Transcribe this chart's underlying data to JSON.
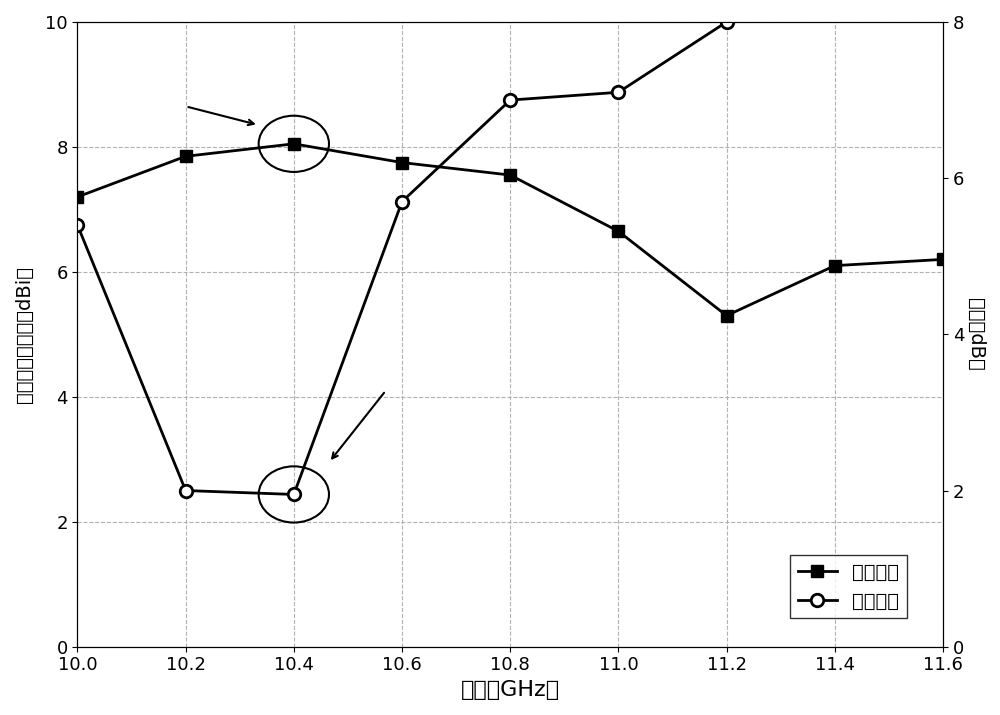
{
  "freq_gain": [
    10.0,
    10.2,
    10.4,
    10.6,
    10.8,
    11.0,
    11.2,
    11.4,
    11.6
  ],
  "gain": [
    7.2,
    7.85,
    8.05,
    7.75,
    7.55,
    6.65,
    5.3,
    6.1,
    6.2
  ],
  "freq_ar": [
    10.0,
    10.2,
    10.4,
    10.6,
    10.8,
    11.0,
    11.2
  ],
  "axial_ratio": [
    5.4,
    2.0,
    1.95,
    5.7,
    7.0,
    7.1,
    8.0
  ],
  "xlim": [
    10.0,
    11.6
  ],
  "xticks": [
    10.0,
    10.2,
    10.4,
    10.6,
    10.8,
    11.0,
    11.2,
    11.4,
    11.6
  ],
  "ylim_left": [
    0,
    10
  ],
  "yticks_left": [
    0,
    2,
    4,
    6,
    8,
    10
  ],
  "ylim_right": [
    0,
    8
  ],
  "yticks_right": [
    0,
    2,
    4,
    6,
    8
  ],
  "ylabel_left": "右旋圆极化增益（dBi）",
  "ylabel_right": "轴比（dB）",
  "xlabel": "频率（GHz）",
  "legend_gain": "测试增益",
  "legend_ar": "测试轴比",
  "line_color": "#000000",
  "background_color": "#ffffff",
  "grid_color": "#aaaaaa"
}
